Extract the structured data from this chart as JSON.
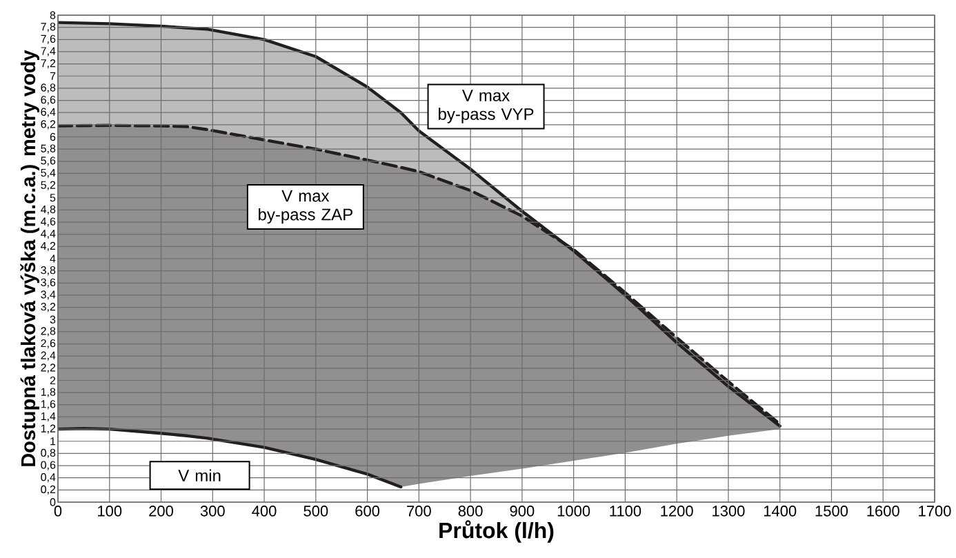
{
  "chart_data": {
    "type": "line",
    "xlabel": "Průtok (l/h)",
    "ylabel": "Dostupná tlaková výška (m.c.a.) metry vody",
    "xlim": [
      0,
      1700
    ],
    "ylim": [
      0,
      8
    ],
    "xticks": [
      0,
      100,
      200,
      300,
      400,
      500,
      600,
      700,
      800,
      900,
      1000,
      1100,
      1200,
      1300,
      1400,
      1500,
      1600,
      1700
    ],
    "yticks": [
      0,
      {
        "value": 0.2,
        "label": "0,2"
      },
      {
        "value": 0.4,
        "label": "0,4"
      },
      {
        "value": 0.6,
        "label": "0,6"
      },
      {
        "value": 0.8,
        "label": "0,8"
      },
      1,
      {
        "value": 1.2,
        "label": "1,2"
      },
      {
        "value": 1.4,
        "label": "1,4"
      },
      {
        "value": 1.6,
        "label": "1,6"
      },
      {
        "value": 1.8,
        "label": "1,8"
      },
      2,
      {
        "value": 2.2,
        "label": "2,2"
      },
      {
        "value": 2.4,
        "label": "2,4"
      },
      {
        "value": 2.6,
        "label": "2,6"
      },
      {
        "value": 2.8,
        "label": "2,8"
      },
      3,
      {
        "value": 3.2,
        "label": "3,2"
      },
      {
        "value": 3.4,
        "label": "3,4"
      },
      {
        "value": 3.6,
        "label": "3,6"
      },
      {
        "value": 3.8,
        "label": "3,8"
      },
      4,
      {
        "value": 4.2,
        "label": "4,2"
      },
      {
        "value": 4.4,
        "label": "4,4"
      },
      {
        "value": 4.6,
        "label": "4,6"
      },
      {
        "value": 4.8,
        "label": "4,8"
      },
      5,
      {
        "value": 5.2,
        "label": "5,2"
      },
      {
        "value": 5.4,
        "label": "5,4"
      },
      {
        "value": 5.6,
        "label": "5,6"
      },
      {
        "value": 5.8,
        "label": "5,8"
      },
      6,
      {
        "value": 6.2,
        "label": "6,2"
      },
      {
        "value": 6.4,
        "label": "6,4"
      },
      {
        "value": 6.6,
        "label": "6,6"
      },
      {
        "value": 6.8,
        "label": "6,8"
      },
      7,
      {
        "value": 7.2,
        "label": "7,2"
      },
      {
        "value": 7.4,
        "label": "7,4"
      },
      {
        "value": 7.6,
        "label": "7,6"
      },
      {
        "value": 7.8,
        "label": "7,8"
      },
      8
    ],
    "grid": true,
    "series": [
      {
        "name": "V max by-pass VYP",
        "color": "#231f20",
        "line_style": "solid",
        "x": [
          0,
          100,
          200,
          250,
          290,
          400,
          500,
          600,
          665,
          700,
          800,
          900,
          1000,
          1100,
          1200,
          1300,
          1400
        ],
        "values": [
          7.88,
          7.86,
          7.82,
          7.79,
          7.77,
          7.6,
          7.32,
          6.82,
          6.4,
          6.1,
          5.47,
          4.78,
          4.13,
          3.4,
          2.62,
          1.9,
          1.25
        ],
        "upper": [
          7.88,
          7.86,
          7.82,
          7.79,
          7.77,
          7.6,
          7.32,
          6.82,
          6.4,
          6.1,
          5.47,
          4.78,
          4.13,
          3.4,
          2.62,
          1.9,
          1.25
        ],
        "lower": [
          6.18,
          6.19,
          6.18,
          6.17,
          6.12,
          5.95,
          5.8,
          5.62,
          5.5,
          5.43,
          5.12,
          4.7,
          4.15,
          3.44,
          2.7,
          1.98,
          1.28
        ]
      },
      {
        "name": "V max by-pass ZAP",
        "color": "#231f20",
        "line_style": "dashed",
        "x": [
          0,
          100,
          200,
          250,
          290,
          400,
          500,
          600,
          665,
          700,
          800,
          900,
          1000,
          1100,
          1200,
          1300,
          1400
        ],
        "values": [
          6.18,
          6.19,
          6.18,
          6.17,
          6.12,
          5.95,
          5.8,
          5.62,
          5.5,
          5.43,
          5.12,
          4.7,
          4.15,
          3.44,
          2.7,
          1.98,
          1.28
        ],
        "upper": [
          6.18,
          6.19,
          6.18,
          6.17,
          6.12,
          5.95,
          5.8,
          5.62,
          5.5,
          5.43,
          5.12,
          4.7,
          4.15,
          3.44,
          2.7,
          1.98,
          1.28
        ],
        "lower": [
          1.2,
          1.2,
          1.13,
          1.09,
          1.05,
          0.9,
          0.7,
          0.46,
          0.25,
          0.3,
          0.43,
          0.55,
          0.68,
          0.81,
          0.96,
          1.09,
          1.2
        ]
      },
      {
        "name": "V min",
        "color": "#231f20",
        "line_style": "solid",
        "x": [
          0,
          50,
          100,
          200,
          250,
          290,
          400,
          500,
          600,
          665
        ],
        "values": [
          1.2,
          1.21,
          1.2,
          1.13,
          1.09,
          1.05,
          0.9,
          0.7,
          0.46,
          0.25
        ]
      }
    ]
  }
}
